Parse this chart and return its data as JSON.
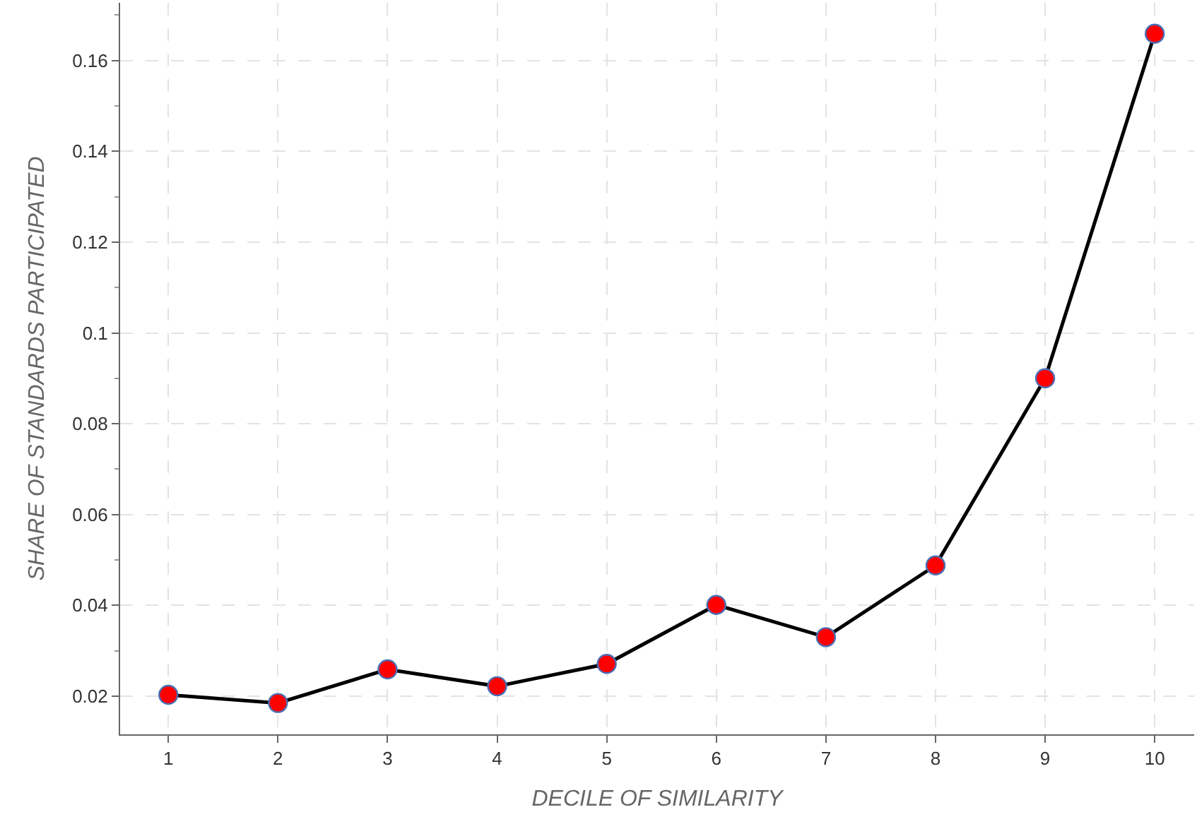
{
  "chart_data": {
    "type": "line",
    "xlabel": "DECILE OF SIMILARITY",
    "ylabel": "SHARE OF STANDARDS PARTICIPATED",
    "x": [
      1,
      2,
      3,
      4,
      5,
      6,
      7,
      8,
      9,
      10
    ],
    "series": [
      {
        "color": "#000000",
        "colors": [
          "#ff0000",
          "#ff0000",
          "#ff0000",
          "#ff0000",
          "#ff0000",
          "#ff0000",
          "#ff0000",
          "#ff0000",
          "#ff0000",
          "#ff0000"
        ],
        "values": [
          0.0203,
          0.0185,
          0.0259,
          0.0222,
          0.0271,
          0.0401,
          0.033,
          0.0488,
          0.09,
          0.1659
        ]
      }
    ],
    "xlim": [
      0.56,
      10.36
    ],
    "xticks": [
      1,
      2,
      3,
      4,
      5,
      6,
      7,
      8,
      9,
      10
    ],
    "ylim": [
      0.0116,
      0.1727
    ],
    "yticks": [
      0.02,
      0.04,
      0.06,
      0.08,
      0.1,
      0.12,
      0.14,
      0.16
    ],
    "grid": true,
    "marker": "circle",
    "line_style": "solid",
    "legend": false
  }
}
